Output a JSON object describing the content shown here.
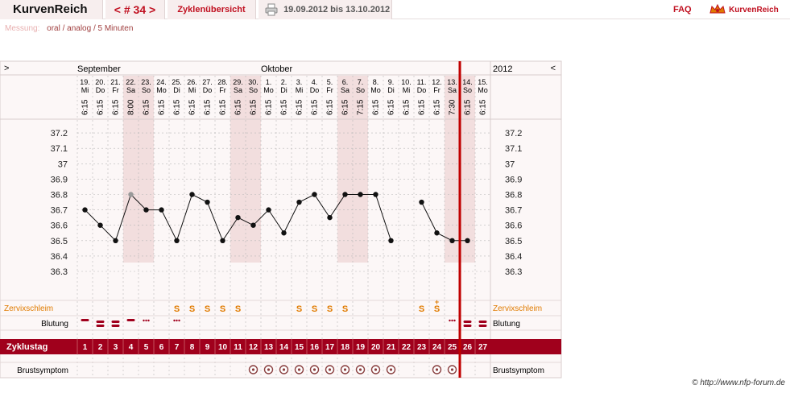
{
  "header": {
    "app_title": "KurvenReich",
    "cycle_nav": "< # 34 >",
    "overview_tab": "Zyklenübersicht",
    "date_range": "19.09.2012 bis 13.10.2012",
    "faq": "FAQ",
    "logo_text": "KurvenReich"
  },
  "measurement": {
    "label": "Messung:",
    "value": "oral / analog / 5 Minuten"
  },
  "credit": "© http://www.nfp-forum.de",
  "colors": {
    "accent": "#a0001c",
    "orange": "#e07b00",
    "redline": "#c00000",
    "grid": "#b8b8b8",
    "weekend": "#f2dede"
  },
  "chart_data": {
    "type": "line",
    "months": [
      {
        "label": "September",
        "col": 0
      },
      {
        "label": "Oktober",
        "col": 12
      }
    ],
    "year": "2012",
    "nav_left": ">",
    "nav_right": "<",
    "days": [
      {
        "d": "19.",
        "w": "Mi",
        "t": "6:15"
      },
      {
        "d": "20.",
        "w": "Do",
        "t": "6:15"
      },
      {
        "d": "21.",
        "w": "Fr",
        "t": "6:15"
      },
      {
        "d": "22.",
        "w": "Sa",
        "t": "8:00"
      },
      {
        "d": "23.",
        "w": "So",
        "t": "6:15"
      },
      {
        "d": "24.",
        "w": "Mo",
        "t": "6:15"
      },
      {
        "d": "25.",
        "w": "Di",
        "t": "6:15"
      },
      {
        "d": "26.",
        "w": "Mi",
        "t": "6:15"
      },
      {
        "d": "27.",
        "w": "Do",
        "t": "6:15"
      },
      {
        "d": "28.",
        "w": "Fr",
        "t": "6:15"
      },
      {
        "d": "29.",
        "w": "Sa",
        "t": "6:15"
      },
      {
        "d": "30.",
        "w": "So",
        "t": "6:15"
      },
      {
        "d": "1.",
        "w": "Mo",
        "t": "6:15"
      },
      {
        "d": "2.",
        "w": "Di",
        "t": "6:15"
      },
      {
        "d": "3.",
        "w": "Mi",
        "t": "6:15"
      },
      {
        "d": "4.",
        "w": "Do",
        "t": "6:15"
      },
      {
        "d": "5.",
        "w": "Fr",
        "t": "6:15"
      },
      {
        "d": "6.",
        "w": "Sa",
        "t": "6:15"
      },
      {
        "d": "7.",
        "w": "So",
        "t": "7:15"
      },
      {
        "d": "8.",
        "w": "Mo",
        "t": "6:15"
      },
      {
        "d": "9.",
        "w": "Di",
        "t": "6:15"
      },
      {
        "d": "10.",
        "w": "Mi",
        "t": "6:15"
      },
      {
        "d": "11.",
        "w": "Do",
        "t": "6:15"
      },
      {
        "d": "12.",
        "w": "Fr",
        "t": "6:15"
      },
      {
        "d": "13.",
        "w": "Sa",
        "t": "7:30"
      },
      {
        "d": "14.",
        "w": "So",
        "t": "6:15"
      },
      {
        "d": "15.",
        "w": "Mo",
        "t": "6:15"
      }
    ],
    "yticks": [
      "37.2",
      "37.1",
      "37",
      "36.9",
      "36.8",
      "36.7",
      "36.6",
      "36.5",
      "36.4",
      "36.3"
    ],
    "ylim": [
      36.3,
      37.2
    ],
    "temps": [
      36.7,
      36.6,
      36.5,
      36.8,
      36.7,
      36.7,
      36.5,
      36.8,
      36.75,
      36.5,
      36.65,
      36.6,
      36.7,
      36.55,
      36.75,
      36.8,
      36.65,
      36.8,
      36.8,
      36.8,
      36.5,
      null,
      36.75,
      36.55,
      36.5,
      36.5,
      null
    ],
    "excluded": [
      3
    ],
    "connect_break_after": [
      24
    ],
    "cycle_days": [
      "1",
      "2",
      "3",
      "4",
      "5",
      "6",
      "7",
      "8",
      "9",
      "10",
      "11",
      "12",
      "13",
      "14",
      "15",
      "16",
      "17",
      "18",
      "19",
      "20",
      "21",
      "22",
      "23",
      "24",
      "25",
      "26",
      "27"
    ],
    "current_col": 24,
    "rows": {
      "cervix": {
        "label": "Zervixschleim",
        "symbols": [
          "",
          "",
          "",
          "",
          "",
          "",
          "S",
          "S",
          "S",
          "S",
          "S",
          "",
          "",
          "",
          "S",
          "S",
          "S",
          "S",
          "",
          "",
          "",
          "",
          "S",
          "S+",
          "",
          "",
          ""
        ]
      },
      "bleeding": {
        "label": "Blutung",
        "symbols": [
          "light",
          "heavy",
          "heavy",
          "light",
          "spot",
          "",
          "spot",
          "",
          "",
          "",
          "",
          "",
          "",
          "",
          "",
          "",
          "",
          "",
          "",
          "",
          "",
          "",
          "",
          "",
          "spot",
          "heavy",
          "heavy"
        ]
      },
      "cycle": {
        "label": "Zyklustag"
      },
      "breast": {
        "label": "Brustsymptom",
        "symbols": [
          0,
          0,
          0,
          0,
          0,
          0,
          0,
          0,
          0,
          0,
          0,
          1,
          1,
          1,
          1,
          1,
          1,
          1,
          1,
          1,
          1,
          0,
          0,
          1,
          1,
          0,
          0
        ]
      }
    }
  }
}
